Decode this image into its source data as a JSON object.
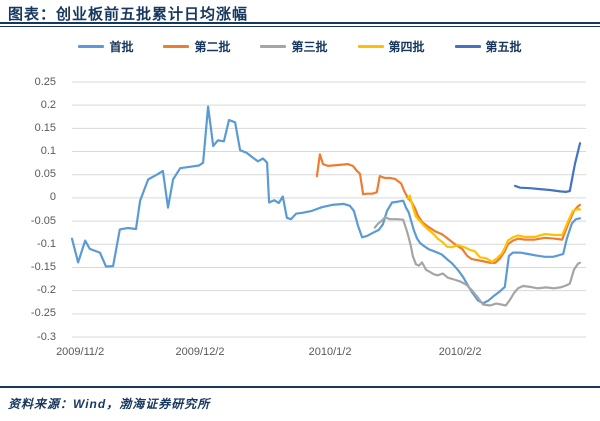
{
  "header": {
    "title": "图表：创业板前五批累计日均涨幅"
  },
  "source": {
    "text": "资料来源：Wind，渤海证券研究所"
  },
  "colors": {
    "title": "#17375E",
    "rule": "#17375E",
    "tick_label": "#595959",
    "gridline": "#D9D9D9",
    "background": "#FFFFFF"
  },
  "chart_data": {
    "type": "line",
    "title": "创业板前五批累计日均涨幅",
    "xlabel": "",
    "ylabel": "",
    "ylim": [
      -0.3,
      0.25
    ],
    "y_step": 0.05,
    "grid": true,
    "legend_position": "top",
    "y_ticks": [
      {
        "label": "0.25",
        "value": 0.25
      },
      {
        "label": "0.2",
        "value": 0.2
      },
      {
        "label": "0.15",
        "value": 0.15
      },
      {
        "label": "0.1",
        "value": 0.1
      },
      {
        "label": "0.05",
        "value": 0.05
      },
      {
        "label": "0",
        "value": 0
      },
      {
        "label": "-0.05",
        "value": -0.05
      },
      {
        "label": "-0.1",
        "value": -0.1
      },
      {
        "label": "-0.15",
        "value": -0.15
      },
      {
        "label": "-0.2",
        "value": -0.2
      },
      {
        "label": "-0.25",
        "value": -0.25
      },
      {
        "label": "-0.3",
        "value": -0.3
      }
    ],
    "x_ticks": [
      {
        "label": "2009/11/2",
        "pos": 1.6
      },
      {
        "label": "2009/12/2",
        "pos": 25.2
      },
      {
        "label": "2010/1/2",
        "pos": 50.8
      },
      {
        "label": "2010/2/2",
        "pos": 76.4
      }
    ],
    "series": [
      {
        "name": "首批",
        "color": "#5B9BD5",
        "points": [
          [
            0,
            -0.088
          ],
          [
            1.2,
            -0.139
          ],
          [
            2.6,
            -0.092
          ],
          [
            3.5,
            -0.11
          ],
          [
            5.5,
            -0.118
          ],
          [
            6.7,
            -0.148
          ],
          [
            8.1,
            -0.147
          ],
          [
            9.4,
            -0.068
          ],
          [
            11,
            -0.065
          ],
          [
            12.6,
            -0.067
          ],
          [
            13.4,
            -0.006
          ],
          [
            15,
            0.04
          ],
          [
            16.7,
            0.05
          ],
          [
            17.9,
            0.058
          ],
          [
            18.9,
            -0.021
          ],
          [
            19.9,
            0.04
          ],
          [
            21.3,
            0.064
          ],
          [
            23.2,
            0.067
          ],
          [
            25,
            0.07
          ],
          [
            25.8,
            0.076
          ],
          [
            26.8,
            0.197
          ],
          [
            27.8,
            0.112
          ],
          [
            28.7,
            0.124
          ],
          [
            29.9,
            0.122
          ],
          [
            30.9,
            0.168
          ],
          [
            32.1,
            0.163
          ],
          [
            33.1,
            0.103
          ],
          [
            34.4,
            0.097
          ],
          [
            35.6,
            0.087
          ],
          [
            36.6,
            0.079
          ],
          [
            37.6,
            0.085
          ],
          [
            38.4,
            0.076
          ],
          [
            38.8,
            -0.01
          ],
          [
            39.8,
            -0.005
          ],
          [
            40.7,
            -0.011
          ],
          [
            41.5,
            0.003
          ],
          [
            42.3,
            -0.043
          ],
          [
            43.1,
            -0.046
          ],
          [
            44.1,
            -0.034
          ],
          [
            45.5,
            -0.032
          ],
          [
            47.2,
            -0.028
          ],
          [
            49.2,
            -0.02
          ],
          [
            51.2,
            -0.015
          ],
          [
            53.5,
            -0.013
          ],
          [
            54.7,
            -0.017
          ],
          [
            55.5,
            -0.028
          ],
          [
            56.3,
            -0.06
          ],
          [
            57.1,
            -0.085
          ],
          [
            58.1,
            -0.082
          ],
          [
            59.3,
            -0.075
          ],
          [
            60.4,
            -0.069
          ],
          [
            61.2,
            -0.057
          ],
          [
            62,
            -0.028
          ],
          [
            63,
            -0.01
          ],
          [
            64.2,
            -0.008
          ],
          [
            65.2,
            -0.006
          ],
          [
            65.7,
            -0.02
          ],
          [
            66.3,
            -0.032
          ],
          [
            66.7,
            -0.047
          ],
          [
            67.3,
            -0.07
          ],
          [
            67.9,
            -0.087
          ],
          [
            68.5,
            -0.097
          ],
          [
            69.3,
            -0.104
          ],
          [
            70.3,
            -0.111
          ],
          [
            71.5,
            -0.116
          ],
          [
            72.8,
            -0.122
          ],
          [
            73.8,
            -0.132
          ],
          [
            74.8,
            -0.141
          ],
          [
            76,
            -0.156
          ],
          [
            77,
            -0.171
          ],
          [
            78,
            -0.19
          ],
          [
            78.9,
            -0.206
          ],
          [
            79.9,
            -0.221
          ],
          [
            80.9,
            -0.227
          ],
          [
            81.9,
            -0.222
          ],
          [
            83.1,
            -0.211
          ],
          [
            84.3,
            -0.201
          ],
          [
            85.2,
            -0.192
          ],
          [
            86,
            -0.125
          ],
          [
            86.8,
            -0.118
          ],
          [
            88.2,
            -0.118
          ],
          [
            89.8,
            -0.121
          ],
          [
            91.3,
            -0.124
          ],
          [
            93.1,
            -0.127
          ],
          [
            94.7,
            -0.127
          ],
          [
            95.7,
            -0.124
          ],
          [
            96.7,
            -0.121
          ],
          [
            97.4,
            -0.088
          ],
          [
            98.4,
            -0.055
          ],
          [
            99.2,
            -0.046
          ],
          [
            100,
            -0.044
          ]
        ]
      },
      {
        "name": "第二批",
        "color": "#ED7D31",
        "points": [
          [
            48.2,
            0.047
          ],
          [
            48.8,
            0.094
          ],
          [
            49.4,
            0.073
          ],
          [
            50.4,
            0.069
          ],
          [
            52.4,
            0.071
          ],
          [
            54.3,
            0.073
          ],
          [
            55.3,
            0.069
          ],
          [
            56.1,
            0.058
          ],
          [
            56.7,
            0.052
          ],
          [
            57.3,
            0.008
          ],
          [
            58.1,
            0.009
          ],
          [
            59.1,
            0.009
          ],
          [
            60,
            0.012
          ],
          [
            60.6,
            0.047
          ],
          [
            61.6,
            0.043
          ],
          [
            62.6,
            0.043
          ],
          [
            63.6,
            0.041
          ],
          [
            64.2,
            0.036
          ],
          [
            64.8,
            0.031
          ],
          [
            65.4,
            0.015
          ],
          [
            66.1,
            0
          ],
          [
            66.9,
            -0.01
          ],
          [
            67.5,
            -0.022
          ],
          [
            68.1,
            -0.038
          ],
          [
            68.9,
            -0.052
          ],
          [
            70.1,
            -0.062
          ],
          [
            71.5,
            -0.072
          ],
          [
            72.8,
            -0.078
          ],
          [
            74,
            -0.088
          ],
          [
            75.4,
            -0.1
          ],
          [
            76.8,
            -0.11
          ],
          [
            77.8,
            -0.125
          ],
          [
            78.7,
            -0.132
          ],
          [
            80.7,
            -0.136
          ],
          [
            82.3,
            -0.14
          ],
          [
            83.3,
            -0.14
          ],
          [
            84.3,
            -0.13
          ],
          [
            85.2,
            -0.115
          ],
          [
            85.8,
            -0.1
          ],
          [
            86.8,
            -0.092
          ],
          [
            87.8,
            -0.088
          ],
          [
            89.2,
            -0.09
          ],
          [
            91.1,
            -0.09
          ],
          [
            93.1,
            -0.086
          ],
          [
            95.1,
            -0.088
          ],
          [
            96.5,
            -0.09
          ],
          [
            97.6,
            -0.058
          ],
          [
            98.8,
            -0.028
          ],
          [
            99.6,
            -0.018
          ],
          [
            100,
            -0.015
          ]
        ]
      },
      {
        "name": "第三批",
        "color": "#A5A5A5",
        "points": [
          [
            59.6,
            -0.064
          ],
          [
            60.2,
            -0.056
          ],
          [
            61,
            -0.049
          ],
          [
            61.6,
            -0.042
          ],
          [
            62.6,
            -0.046
          ],
          [
            64,
            -0.046
          ],
          [
            65.2,
            -0.047
          ],
          [
            65.9,
            -0.071
          ],
          [
            66.3,
            -0.086
          ],
          [
            66.7,
            -0.103
          ],
          [
            67.1,
            -0.126
          ],
          [
            67.7,
            -0.143
          ],
          [
            68.3,
            -0.146
          ],
          [
            68.9,
            -0.139
          ],
          [
            69.7,
            -0.155
          ],
          [
            70.5,
            -0.16
          ],
          [
            71.3,
            -0.165
          ],
          [
            72,
            -0.167
          ],
          [
            73,
            -0.163
          ],
          [
            74,
            -0.172
          ],
          [
            75.2,
            -0.176
          ],
          [
            76.4,
            -0.18
          ],
          [
            77.6,
            -0.187
          ],
          [
            78.7,
            -0.199
          ],
          [
            79.9,
            -0.215
          ],
          [
            80.9,
            -0.23
          ],
          [
            82.3,
            -0.232
          ],
          [
            83.5,
            -0.228
          ],
          [
            84.5,
            -0.23
          ],
          [
            85.4,
            -0.232
          ],
          [
            86.2,
            -0.22
          ],
          [
            87,
            -0.205
          ],
          [
            87.8,
            -0.195
          ],
          [
            88.8,
            -0.19
          ],
          [
            90.2,
            -0.192
          ],
          [
            91.7,
            -0.195
          ],
          [
            93.3,
            -0.193
          ],
          [
            94.9,
            -0.195
          ],
          [
            96.1,
            -0.193
          ],
          [
            97,
            -0.19
          ],
          [
            98,
            -0.185
          ],
          [
            98.8,
            -0.155
          ],
          [
            99.6,
            -0.142
          ],
          [
            100,
            -0.14
          ]
        ]
      },
      {
        "name": "第四批",
        "color": "#FFC000",
        "points": [
          [
            66.1,
            -0.002
          ],
          [
            66.5,
            0.005
          ],
          [
            67.1,
            -0.02
          ],
          [
            67.7,
            -0.04
          ],
          [
            68.5,
            -0.05
          ],
          [
            69.3,
            -0.06
          ],
          [
            70.1,
            -0.068
          ],
          [
            71.1,
            -0.077
          ],
          [
            72,
            -0.088
          ],
          [
            73,
            -0.096
          ],
          [
            73.8,
            -0.105
          ],
          [
            74.8,
            -0.106
          ],
          [
            76,
            -0.102
          ],
          [
            77.4,
            -0.107
          ],
          [
            78.3,
            -0.112
          ],
          [
            79.3,
            -0.115
          ],
          [
            80.3,
            -0.128
          ],
          [
            81.5,
            -0.13
          ],
          [
            82.7,
            -0.138
          ],
          [
            83.7,
            -0.13
          ],
          [
            84.6,
            -0.12
          ],
          [
            85.2,
            -0.108
          ],
          [
            85.8,
            -0.092
          ],
          [
            86.8,
            -0.085
          ],
          [
            87.8,
            -0.081
          ],
          [
            89.2,
            -0.084
          ],
          [
            91.1,
            -0.084
          ],
          [
            93.1,
            -0.078
          ],
          [
            95.1,
            -0.08
          ],
          [
            96.5,
            -0.08
          ],
          [
            97.6,
            -0.052
          ],
          [
            98.6,
            -0.028
          ],
          [
            99.6,
            -0.024
          ],
          [
            100,
            -0.025
          ]
        ]
      },
      {
        "name": "第五批",
        "color": "#4472C4",
        "points": [
          [
            87.2,
            0.026
          ],
          [
            88.2,
            0.022
          ],
          [
            90.2,
            0.021
          ],
          [
            92.1,
            0.019
          ],
          [
            94.1,
            0.017
          ],
          [
            96.1,
            0.014
          ],
          [
            97.2,
            0.013
          ],
          [
            98,
            0.015
          ],
          [
            99,
            0.073
          ],
          [
            100,
            0.118
          ]
        ]
      }
    ]
  }
}
